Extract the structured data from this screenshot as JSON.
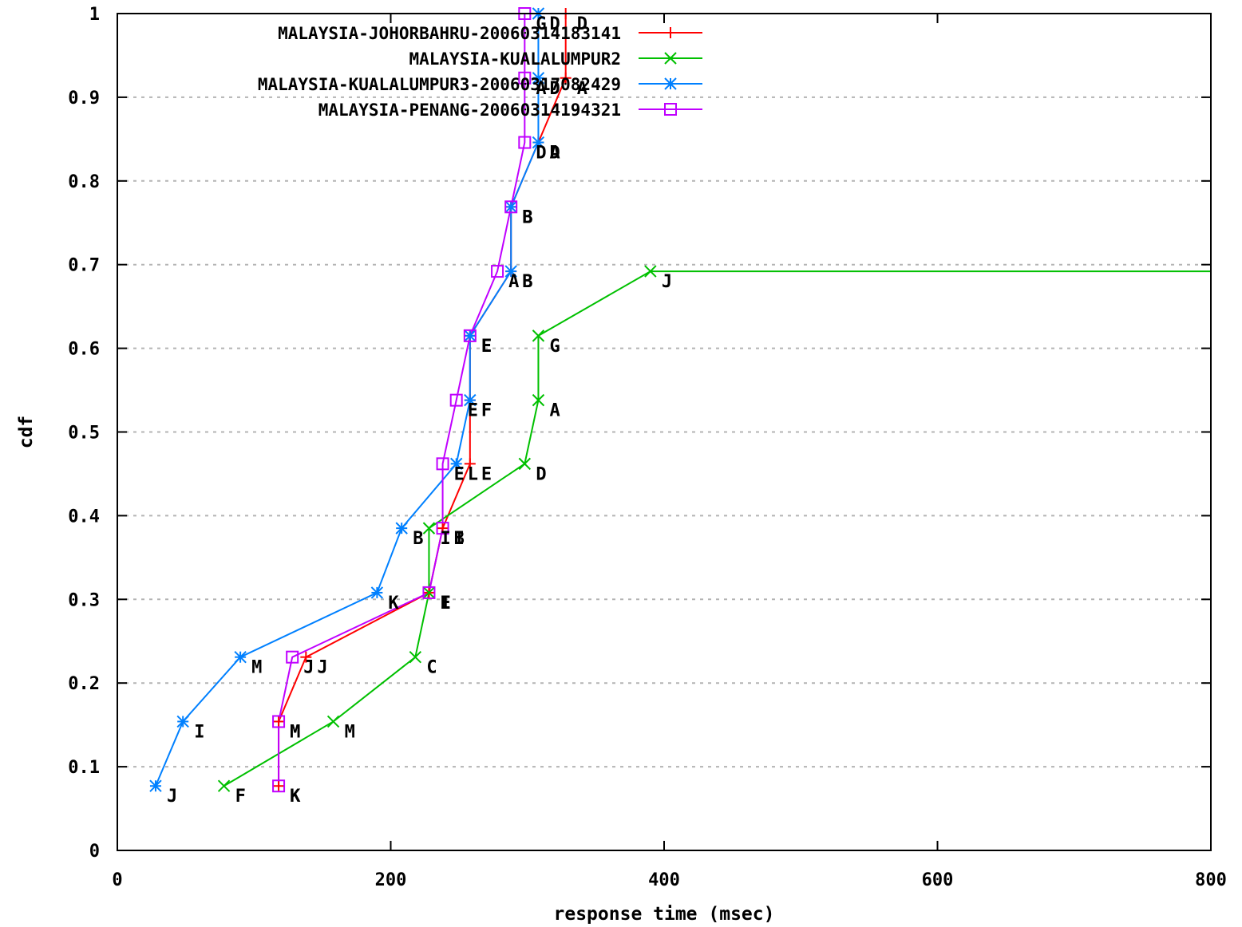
{
  "chart_data": {
    "type": "line",
    "xlabel": "response time (msec)",
    "ylabel": "cdf",
    "xlim": [
      0,
      800
    ],
    "ylim": [
      0,
      1
    ],
    "xticks": [
      0,
      200,
      400,
      600,
      800
    ],
    "yticks": [
      0,
      0.1,
      0.2,
      0.3,
      0.4,
      0.5,
      0.6,
      0.7,
      0.8,
      0.9,
      1
    ],
    "ytick_labels": [
      "0",
      "0.1",
      "0.2",
      "0.3",
      "0.4",
      "0.5",
      "0.6",
      "0.7",
      "0.8",
      "0.9",
      "1"
    ],
    "grid": "horizontal-dashed",
    "legend_position": "top-left",
    "series": [
      {
        "name": "MALAYSIA-JOHORBAHRU-20060314183141",
        "color": "#ff0000",
        "marker": "plus",
        "points": [
          {
            "x": 118,
            "y": 0.077,
            "label": "K"
          },
          {
            "x": 118,
            "y": 0.154,
            "label": "M"
          },
          {
            "x": 138,
            "y": 0.231,
            "label": "J"
          },
          {
            "x": 228,
            "y": 0.308,
            "label": "I"
          },
          {
            "x": 238,
            "y": 0.385,
            "label": "I"
          },
          {
            "x": 258,
            "y": 0.462,
            "label": "E"
          },
          {
            "x": 258,
            "y": 0.538,
            "label": "F"
          },
          {
            "x": 258,
            "y": 0.615,
            "label": "E"
          },
          {
            "x": 288,
            "y": 0.692,
            "label": "B"
          },
          {
            "x": 288,
            "y": 0.769,
            "label": "B"
          },
          {
            "x": 308,
            "y": 0.846,
            "label": "A"
          },
          {
            "x": 328,
            "y": 0.923,
            "label": "A"
          },
          {
            "x": 328,
            "y": 1.0,
            "label": "D"
          }
        ]
      },
      {
        "name": "MALAYSIA-KUALALUMPUR2",
        "color": "#00c000",
        "marker": "cross",
        "points": [
          {
            "x": 78,
            "y": 0.077,
            "label": "F"
          },
          {
            "x": 158,
            "y": 0.154,
            "label": "M"
          },
          {
            "x": 218,
            "y": 0.231,
            "label": "C"
          },
          {
            "x": 228,
            "y": 0.308,
            "label": "E"
          },
          {
            "x": 228,
            "y": 0.385,
            "label": "I"
          },
          {
            "x": 298,
            "y": 0.462,
            "label": "D"
          },
          {
            "x": 308,
            "y": 0.538,
            "label": "A"
          },
          {
            "x": 308,
            "y": 0.615,
            "label": "G"
          },
          {
            "x": 390,
            "y": 0.692,
            "label": "J"
          },
          {
            "x": 800,
            "y": 0.692,
            "label": ""
          }
        ]
      },
      {
        "name": "MALAYSIA-KUALALUMPUR3-20060317082429",
        "color": "#0080ff",
        "marker": "star",
        "points": [
          {
            "x": 28,
            "y": 0.077,
            "label": "J"
          },
          {
            "x": 48,
            "y": 0.154,
            "label": "I"
          },
          {
            "x": 90,
            "y": 0.231,
            "label": "M"
          },
          {
            "x": 190,
            "y": 0.308,
            "label": "K"
          },
          {
            "x": 208,
            "y": 0.385,
            "label": "B"
          },
          {
            "x": 248,
            "y": 0.462,
            "label": "L"
          },
          {
            "x": 258,
            "y": 0.538,
            "label": "F"
          },
          {
            "x": 258,
            "y": 0.615,
            "label": "E"
          },
          {
            "x": 288,
            "y": 0.692,
            "label": "B"
          },
          {
            "x": 288,
            "y": 0.769,
            "label": "B"
          },
          {
            "x": 308,
            "y": 0.846,
            "label": "D"
          },
          {
            "x": 308,
            "y": 0.923,
            "label": "D"
          },
          {
            "x": 308,
            "y": 1.0,
            "label": "D"
          }
        ]
      },
      {
        "name": "MALAYSIA-PENANG-20060314194321",
        "color": "#c000ff",
        "marker": "square",
        "points": [
          {
            "x": 118,
            "y": 0.077,
            "label": "K"
          },
          {
            "x": 118,
            "y": 0.154,
            "label": "M"
          },
          {
            "x": 128,
            "y": 0.231,
            "label": "J"
          },
          {
            "x": 228,
            "y": 0.308,
            "label": "E"
          },
          {
            "x": 238,
            "y": 0.385,
            "label": "B"
          },
          {
            "x": 238,
            "y": 0.462,
            "label": "E"
          },
          {
            "x": 248,
            "y": 0.538,
            "label": "E"
          },
          {
            "x": 258,
            "y": 0.615,
            "label": "E"
          },
          {
            "x": 278,
            "y": 0.692,
            "label": "A"
          },
          {
            "x": 288,
            "y": 0.769,
            "label": "B"
          },
          {
            "x": 298,
            "y": 0.846,
            "label": "D"
          },
          {
            "x": 298,
            "y": 0.923,
            "label": "A"
          },
          {
            "x": 298,
            "y": 1.0,
            "label": "G"
          }
        ]
      }
    ]
  }
}
